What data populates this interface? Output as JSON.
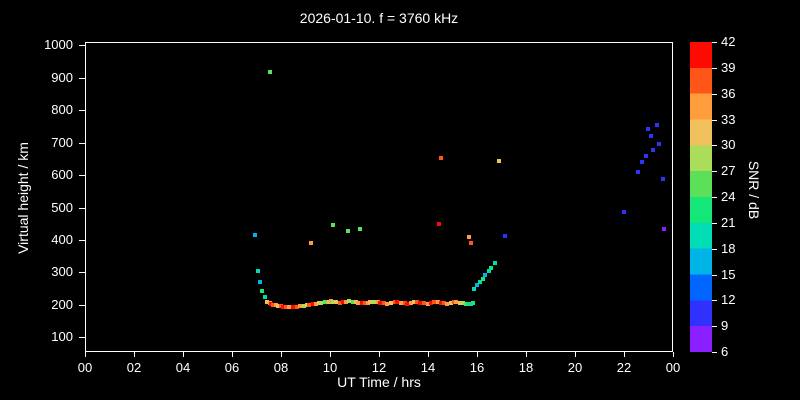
{
  "colors": {
    "background": "#000000",
    "foreground": "#ffffff"
  },
  "chart_data": {
    "type": "scatter",
    "title": "2026-01-10. f = 3760 kHz",
    "xlabel": "UT Time / hrs",
    "ylabel": "Virtual height / km",
    "colorbar_label": "SNR / dB",
    "xlim": [
      0,
      24
    ],
    "ylim": [
      100,
      1000
    ],
    "ylim_draw": [
      55,
      1010
    ],
    "x_tick_values": [
      0,
      2,
      4,
      6,
      8,
      10,
      12,
      14,
      16,
      18,
      20,
      22,
      24
    ],
    "x_tick_labels": [
      "00",
      "02",
      "04",
      "06",
      "08",
      "10",
      "12",
      "14",
      "16",
      "18",
      "20",
      "22",
      "00"
    ],
    "y_tick_values": [
      100,
      200,
      300,
      400,
      500,
      600,
      700,
      800,
      900,
      1000
    ],
    "colorbar": {
      "min": 6,
      "max": 42,
      "ticks": [
        6,
        9,
        12,
        15,
        18,
        21,
        24,
        27,
        30,
        33,
        36,
        39,
        42
      ],
      "bands": [
        {
          "from": 6,
          "to": 9,
          "color": "#8a1fff"
        },
        {
          "from": 9,
          "to": 12,
          "color": "#3030ff"
        },
        {
          "from": 12,
          "to": 15,
          "color": "#0066ff"
        },
        {
          "from": 15,
          "to": 18,
          "color": "#00b4e8"
        },
        {
          "from": 18,
          "to": 21,
          "color": "#00dcb4"
        },
        {
          "from": 21,
          "to": 24,
          "color": "#14e678"
        },
        {
          "from": 24,
          "to": 27,
          "color": "#5ce05a"
        },
        {
          "from": 27,
          "to": 30,
          "color": "#aade5a"
        },
        {
          "from": 30,
          "to": 33,
          "color": "#f0c05c"
        },
        {
          "from": 33,
          "to": 36,
          "color": "#ff9c3c"
        },
        {
          "from": 36,
          "to": 39,
          "color": "#ff5518"
        },
        {
          "from": 39,
          "to": 42,
          "color": "#ff0a00"
        }
      ]
    },
    "points": [
      [
        6.9,
        418,
        16
      ],
      [
        7.0,
        307,
        20
      ],
      [
        7.1,
        273,
        16
      ],
      [
        7.2,
        245,
        23
      ],
      [
        7.3,
        228,
        20
      ],
      [
        7.4,
        213,
        31
      ],
      [
        7.5,
        209,
        34
      ],
      [
        7.55,
        206,
        40
      ],
      [
        7.65,
        204,
        37
      ],
      [
        7.75,
        203,
        34
      ],
      [
        7.85,
        201,
        31
      ],
      [
        7.95,
        200,
        37
      ],
      [
        8.05,
        198,
        40
      ],
      [
        8.15,
        197,
        37
      ],
      [
        8.3,
        196,
        34
      ],
      [
        8.45,
        196,
        40
      ],
      [
        8.6,
        198,
        37
      ],
      [
        8.75,
        200,
        34
      ],
      [
        8.9,
        201,
        28
      ],
      [
        9.0,
        202,
        31
      ],
      [
        9.1,
        204,
        37
      ],
      [
        9.25,
        205,
        40
      ],
      [
        9.4,
        207,
        34
      ],
      [
        9.5,
        208,
        31
      ],
      [
        9.6,
        210,
        28
      ],
      [
        9.75,
        212,
        25
      ],
      [
        9.9,
        213,
        31
      ],
      [
        10.0,
        214,
        34
      ],
      [
        10.1,
        213,
        28
      ],
      [
        10.2,
        211,
        31
      ],
      [
        10.35,
        210,
        37
      ],
      [
        10.5,
        211,
        40
      ],
      [
        10.6,
        213,
        34
      ],
      [
        10.75,
        214,
        28
      ],
      [
        10.9,
        213,
        25
      ],
      [
        11.0,
        212,
        31
      ],
      [
        11.1,
        210,
        34
      ],
      [
        11.25,
        209,
        40
      ],
      [
        11.4,
        208,
        37
      ],
      [
        11.5,
        210,
        34
      ],
      [
        11.6,
        212,
        31
      ],
      [
        11.75,
        213,
        28
      ],
      [
        11.9,
        211,
        34
      ],
      [
        12.0,
        209,
        40
      ],
      [
        12.15,
        208,
        37
      ],
      [
        12.3,
        207,
        34
      ],
      [
        12.45,
        209,
        31
      ],
      [
        12.6,
        211,
        37
      ],
      [
        12.7,
        212,
        40
      ],
      [
        12.85,
        210,
        34
      ],
      [
        13.0,
        208,
        37
      ],
      [
        13.1,
        207,
        40
      ],
      [
        13.25,
        209,
        34
      ],
      [
        13.4,
        211,
        31
      ],
      [
        13.5,
        212,
        37
      ],
      [
        13.65,
        210,
        40
      ],
      [
        13.8,
        208,
        37
      ],
      [
        13.95,
        207,
        34
      ],
      [
        14.1,
        209,
        40
      ],
      [
        14.2,
        211,
        37
      ],
      [
        14.35,
        212,
        34
      ],
      [
        14.5,
        210,
        40
      ],
      [
        14.6,
        208,
        37
      ],
      [
        14.75,
        207,
        34
      ],
      [
        14.9,
        209,
        31
      ],
      [
        15.0,
        211,
        37
      ],
      [
        15.1,
        212,
        34
      ],
      [
        15.25,
        210,
        31
      ],
      [
        15.4,
        208,
        28
      ],
      [
        15.5,
        207,
        25
      ],
      [
        15.6,
        206,
        22
      ],
      [
        15.7,
        207,
        19
      ],
      [
        15.8,
        209,
        22
      ],
      [
        7.5,
        920,
        26
      ],
      [
        9.2,
        394,
        34
      ],
      [
        10.1,
        448,
        25
      ],
      [
        10.7,
        430,
        25
      ],
      [
        11.2,
        437,
        25
      ],
      [
        14.4,
        452,
        40
      ],
      [
        14.5,
        655,
        37
      ],
      [
        15.65,
        412,
        34
      ],
      [
        15.7,
        393,
        37
      ],
      [
        16.85,
        645,
        30
      ],
      [
        17.1,
        415,
        11
      ],
      [
        15.85,
        253,
        19
      ],
      [
        15.95,
        263,
        16
      ],
      [
        16.1,
        274,
        19
      ],
      [
        16.2,
        284,
        22
      ],
      [
        16.3,
        295,
        16
      ],
      [
        16.45,
        307,
        19
      ],
      [
        16.55,
        318,
        22
      ],
      [
        16.7,
        331,
        19
      ],
      [
        21.95,
        488,
        10
      ],
      [
        22.55,
        612,
        11
      ],
      [
        22.7,
        642,
        10
      ],
      [
        22.85,
        661,
        11
      ],
      [
        22.95,
        745,
        10
      ],
      [
        23.05,
        722,
        11
      ],
      [
        23.15,
        680,
        10
      ],
      [
        23.3,
        756,
        11
      ],
      [
        23.4,
        700,
        10
      ],
      [
        23.55,
        592,
        11
      ],
      [
        23.6,
        437,
        8
      ]
    ]
  }
}
